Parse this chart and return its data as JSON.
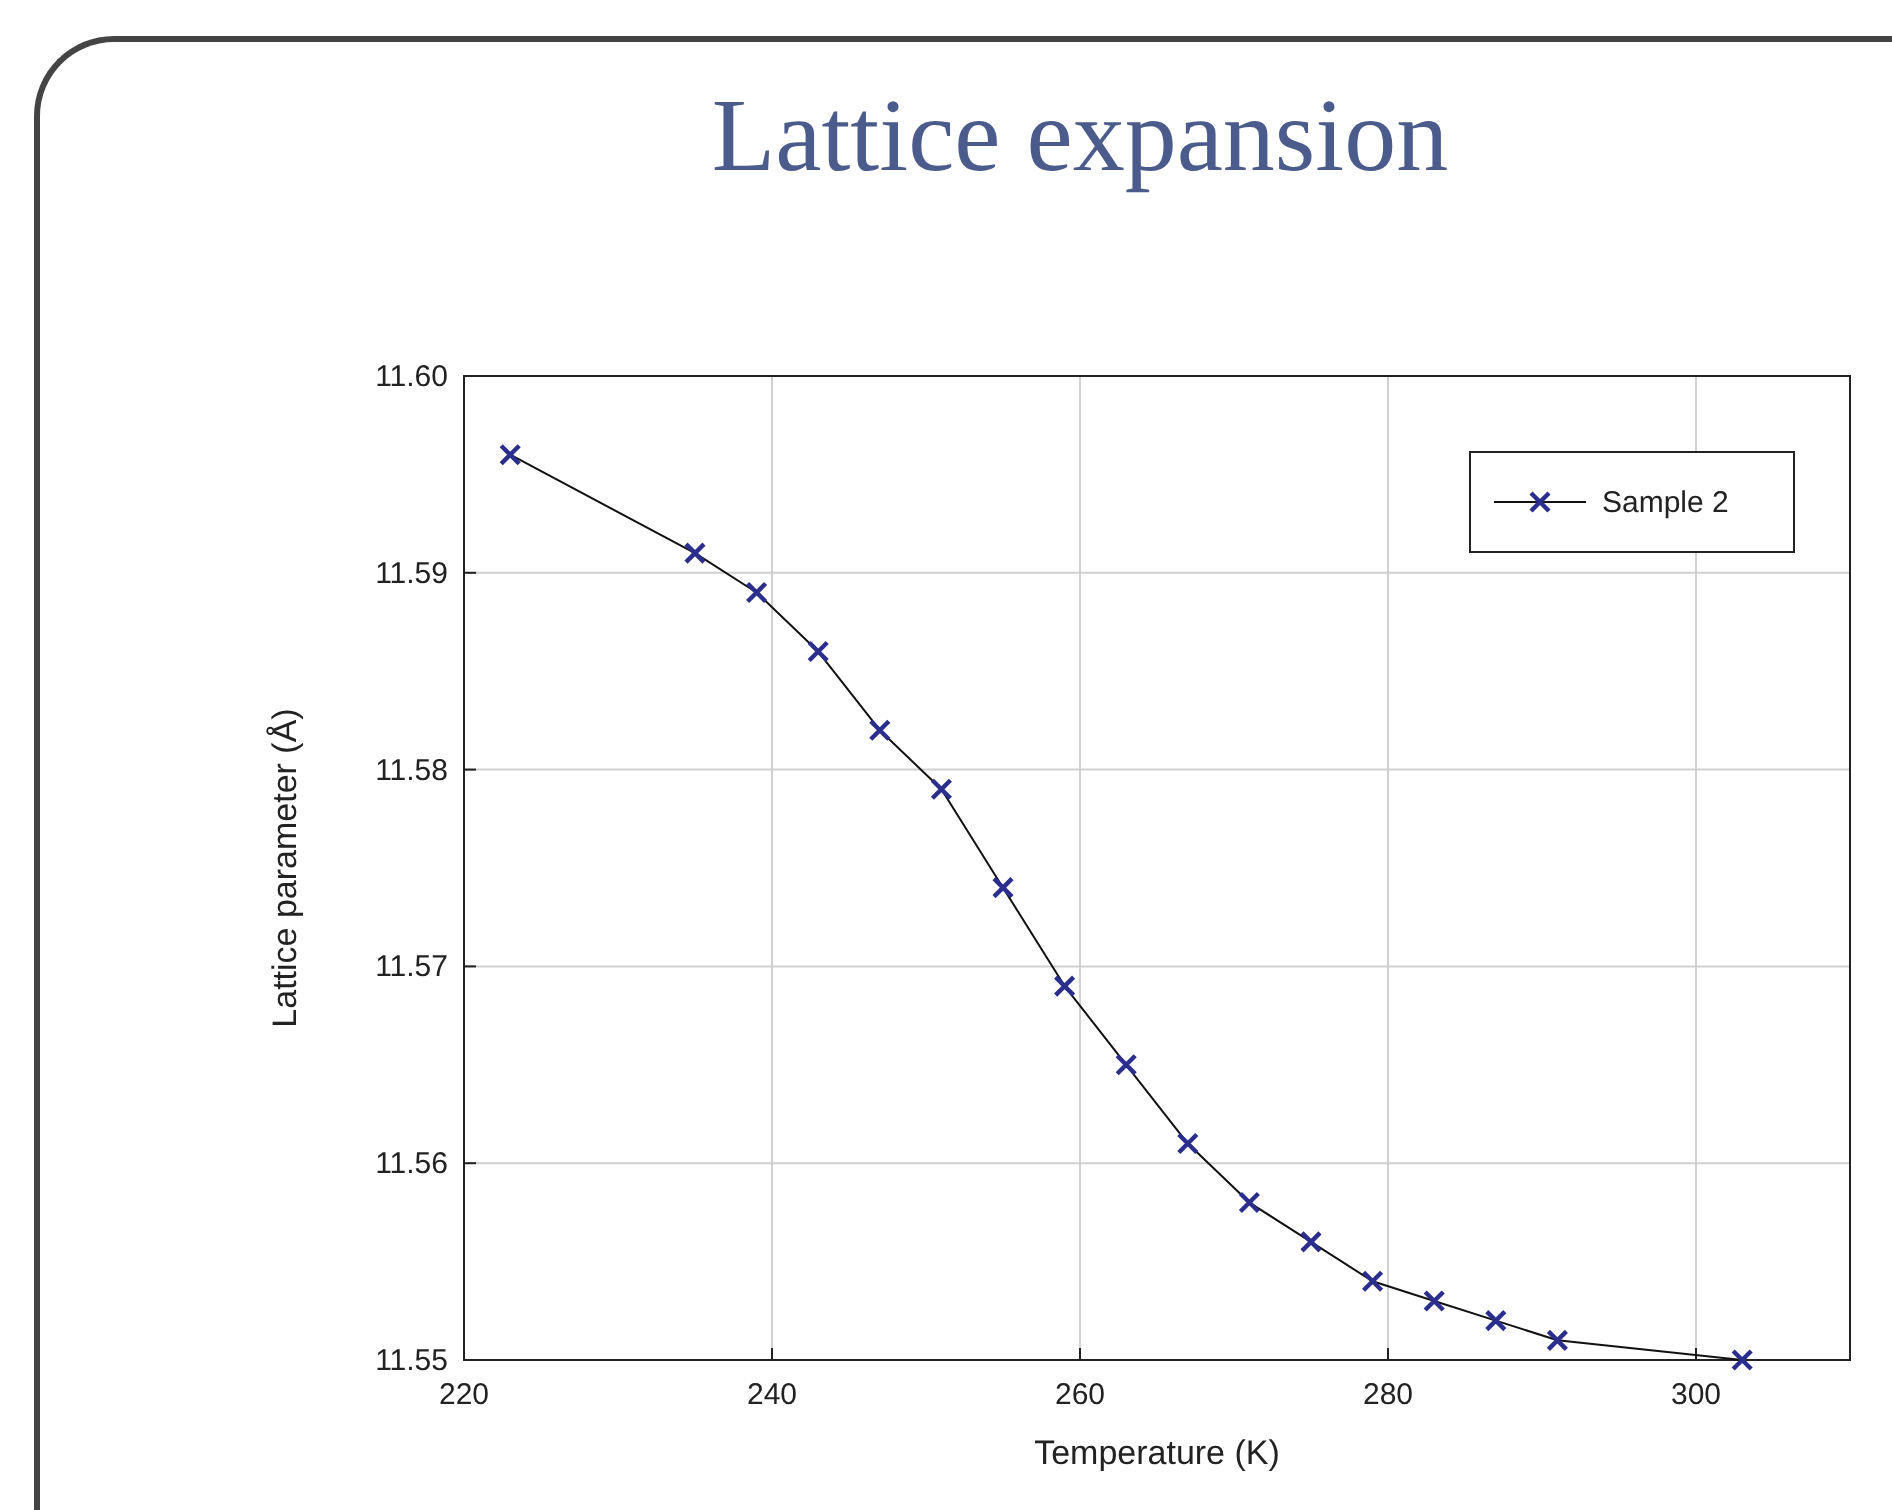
{
  "chart_data": {
    "type": "line",
    "title": "Lattice expansion",
    "xlabel": "Temperature (K)",
    "ylabel": "Lattice parameter (Å)",
    "x": [
      223,
      235,
      239,
      243,
      247,
      251,
      255,
      259,
      263,
      267,
      271,
      275,
      279,
      283,
      287,
      291,
      303
    ],
    "series": [
      {
        "name": "Sample 2",
        "color": "#2b2e8c",
        "values": [
          11.596,
          11.591,
          11.589,
          11.586,
          11.582,
          11.579,
          11.574,
          11.569,
          11.565,
          11.561,
          11.558,
          11.556,
          11.554,
          11.553,
          11.552,
          11.551,
          11.55
        ]
      }
    ],
    "xlim": [
      220,
      310
    ],
    "xticks": [
      220,
      240,
      260,
      280,
      300
    ],
    "ylim": [
      11.55,
      11.6
    ],
    "yticks": [
      {
        "value": 11.55,
        "label": "11.55"
      },
      {
        "value": 11.56,
        "label": "11.56"
      },
      {
        "value": 11.57,
        "label": "11.57"
      },
      {
        "value": 11.58,
        "label": "11.58"
      },
      {
        "value": 11.59,
        "label": "11.59"
      },
      {
        "value": 11.6,
        "label": "11.60"
      }
    ],
    "grid": true,
    "legend": "top right",
    "marker": "cross",
    "line_style": "solid"
  }
}
